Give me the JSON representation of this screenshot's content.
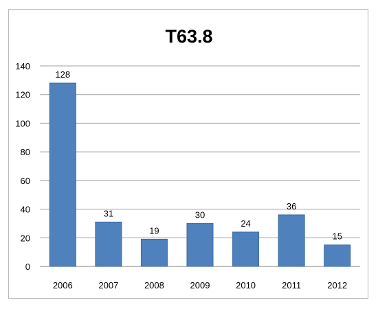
{
  "chart_data": {
    "type": "bar",
    "title": "T63.8",
    "categories": [
      "2006",
      "2007",
      "2008",
      "2009",
      "2010",
      "2011",
      "2012"
    ],
    "values": [
      128,
      31,
      19,
      30,
      24,
      36,
      15
    ],
    "data_labels": [
      "128",
      "31",
      "19",
      "30",
      "24",
      "36",
      "15"
    ],
    "ylim": [
      0,
      140
    ],
    "yticks": [
      0,
      20,
      40,
      60,
      80,
      100,
      120,
      140
    ],
    "grid": true,
    "legend": "none",
    "colors": {
      "bar": "#4f81bd",
      "bar_edge": "#3a6aa3",
      "grid": "#a0a0a0"
    }
  }
}
